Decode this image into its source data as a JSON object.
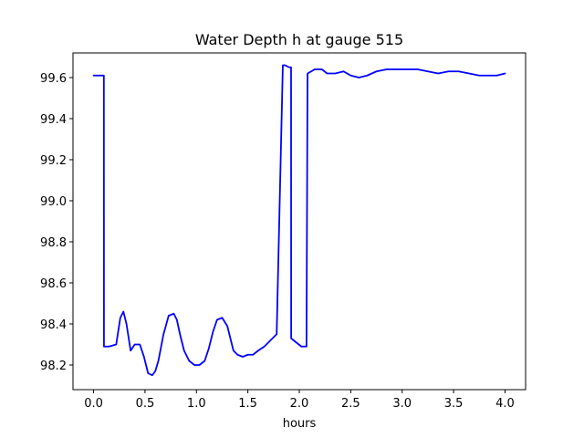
{
  "chart_data": {
    "type": "line",
    "title": "Water Depth h at gauge 515",
    "xlabel": "hours",
    "ylabel": "",
    "xlim": [
      -0.2,
      4.2
    ],
    "ylim": [
      98.08,
      99.72
    ],
    "xticks": [
      0.0,
      0.5,
      1.0,
      1.5,
      2.0,
      2.5,
      3.0,
      3.5,
      4.0
    ],
    "xtick_labels": [
      "0.0",
      "0.5",
      "1.0",
      "1.5",
      "2.0",
      "2.5",
      "3.0",
      "3.5",
      "4.0"
    ],
    "yticks": [
      98.2,
      98.4,
      98.6,
      98.8,
      99.0,
      99.2,
      99.4,
      99.6
    ],
    "ytick_labels": [
      "98.2",
      "98.4",
      "98.6",
      "98.8",
      "99.0",
      "99.2",
      "99.4",
      "99.6"
    ],
    "grid": false,
    "series": [
      {
        "color": "#0000ff",
        "x": [
          0.0,
          0.1,
          0.101,
          0.15,
          0.22,
          0.26,
          0.29,
          0.32,
          0.36,
          0.4,
          0.45,
          0.49,
          0.53,
          0.57,
          0.6,
          0.63,
          0.68,
          0.73,
          0.78,
          0.81,
          0.84,
          0.88,
          0.93,
          0.98,
          1.03,
          1.08,
          1.12,
          1.16,
          1.2,
          1.25,
          1.3,
          1.33,
          1.36,
          1.4,
          1.45,
          1.5,
          1.55,
          1.6,
          1.66,
          1.72,
          1.78,
          1.84,
          1.86,
          1.861,
          1.9,
          1.92,
          1.921,
          1.97,
          2.02,
          2.07,
          2.08,
          2.081,
          2.15,
          2.22,
          2.27,
          2.35,
          2.43,
          2.5,
          2.58,
          2.66,
          2.75,
          2.85,
          2.95,
          3.05,
          3.15,
          3.25,
          3.35,
          3.45,
          3.55,
          3.65,
          3.75,
          3.85,
          3.92,
          4.0
        ],
        "y": [
          99.61,
          99.61,
          98.29,
          98.29,
          98.3,
          98.43,
          98.46,
          98.4,
          98.27,
          98.3,
          98.3,
          98.24,
          98.16,
          98.15,
          98.17,
          98.22,
          98.35,
          98.44,
          98.45,
          98.42,
          98.35,
          98.27,
          98.22,
          98.2,
          98.2,
          98.22,
          98.28,
          98.36,
          98.42,
          98.43,
          98.39,
          98.33,
          98.27,
          98.25,
          98.24,
          98.25,
          98.25,
          98.27,
          98.29,
          98.32,
          98.35,
          99.66,
          99.66,
          99.66,
          99.65,
          99.65,
          98.33,
          98.31,
          98.29,
          98.29,
          99.61,
          99.62,
          99.64,
          99.64,
          99.62,
          99.62,
          99.63,
          99.61,
          99.6,
          99.61,
          99.63,
          99.64,
          99.64,
          99.64,
          99.64,
          99.63,
          99.62,
          99.63,
          99.63,
          99.62,
          99.61,
          99.61,
          99.61,
          99.62
        ]
      }
    ]
  }
}
